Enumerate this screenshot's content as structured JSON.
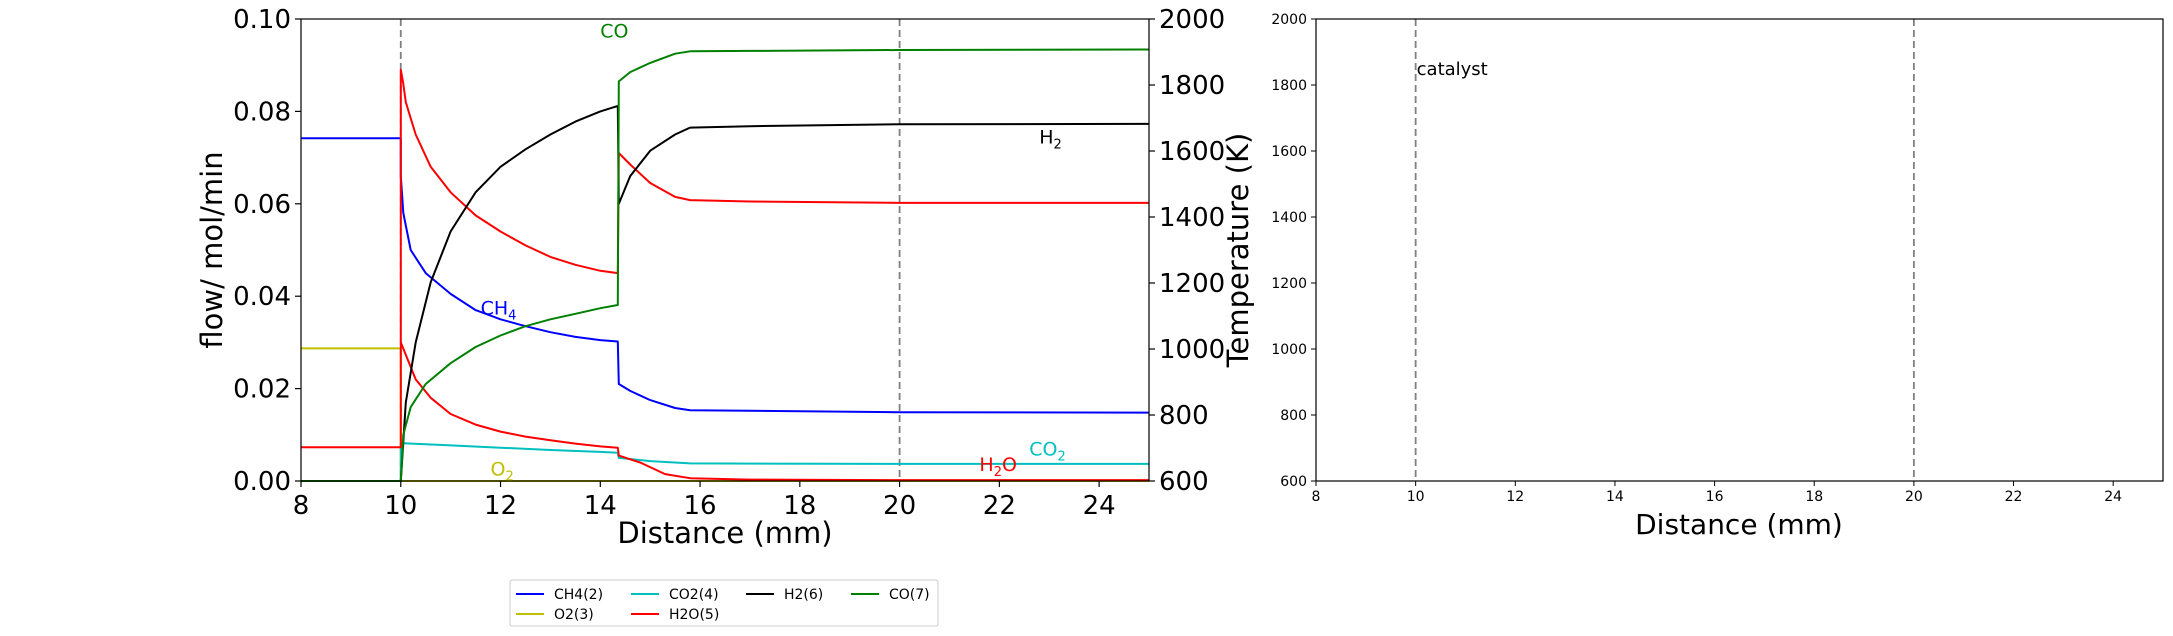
{
  "chart_data": [
    {
      "type": "line",
      "xlabel": "Distance (mm)",
      "ylabel": "flow/ mol/min",
      "y2label": "Temperature (K)",
      "xlim": [
        8,
        25
      ],
      "ylim": [
        0,
        0.1
      ],
      "y2lim": [
        600,
        2000
      ],
      "xticks": [
        "8",
        "10",
        "12",
        "14",
        "16",
        "18",
        "20",
        "22",
        "24"
      ],
      "yticks": [
        "0.00",
        "0.02",
        "0.04",
        "0.06",
        "0.08",
        "0.10"
      ],
      "y2ticks": [
        "600",
        "800",
        "1000",
        "1200",
        "1400",
        "1600",
        "1800",
        "2000"
      ],
      "vlines": [
        10,
        20
      ],
      "grid": false,
      "series": [
        {
          "name": "CH4(2)",
          "color": "#0000ff",
          "points": [
            [
              8,
              0.0742
            ],
            [
              10,
              0.0742
            ],
            [
              10,
              0.066
            ],
            [
              10.05,
              0.058
            ],
            [
              10.2,
              0.05
            ],
            [
              10.5,
              0.045
            ],
            [
              11,
              0.0405
            ],
            [
              11.5,
              0.037
            ],
            [
              12,
              0.035
            ],
            [
              12.5,
              0.0335
            ],
            [
              13,
              0.0322
            ],
            [
              13.5,
              0.0312
            ],
            [
              14,
              0.0305
            ],
            [
              14.35,
              0.0302
            ],
            [
              14.37,
              0.021
            ],
            [
              14.6,
              0.0195
            ],
            [
              15,
              0.0175
            ],
            [
              15.5,
              0.0158
            ],
            [
              15.8,
              0.0153
            ],
            [
              17,
              0.0152
            ],
            [
              20,
              0.0149
            ],
            [
              25,
              0.0148
            ]
          ]
        },
        {
          "name": "O2(3)",
          "color": "#bfbf00",
          "points": [
            [
              8,
              0.0287
            ],
            [
              10,
              0.0287
            ],
            [
              10,
              0.0
            ],
            [
              25,
              0.0
            ]
          ]
        },
        {
          "name": "CO2(4)",
          "color": "#00bfbf",
          "points": [
            [
              8,
              0.0
            ],
            [
              10,
              0.0
            ],
            [
              10,
              0.0082
            ],
            [
              11,
              0.0077
            ],
            [
              12,
              0.0072
            ],
            [
              13,
              0.0067
            ],
            [
              14,
              0.0063
            ],
            [
              14.35,
              0.0061
            ],
            [
              14.37,
              0.005
            ],
            [
              15,
              0.0043
            ],
            [
              15.8,
              0.0038
            ],
            [
              20,
              0.0037
            ],
            [
              25,
              0.0037
            ]
          ]
        },
        {
          "name": "H2O(5)",
          "color": "#ff0000",
          "points": [
            [
              8,
              0.0073
            ],
            [
              10,
              0.0073
            ],
            [
              10,
              0.089
            ],
            [
              10.05,
              0.086
            ],
            [
              10.1,
              0.082
            ],
            [
              10.3,
              0.075
            ],
            [
              10.6,
              0.068
            ],
            [
              11,
              0.0625
            ],
            [
              11.5,
              0.0575
            ],
            [
              12,
              0.054
            ],
            [
              12.5,
              0.051
            ],
            [
              13,
              0.0485
            ],
            [
              13.5,
              0.0468
            ],
            [
              14,
              0.0455
            ],
            [
              14.35,
              0.045
            ],
            [
              14.37,
              0.071
            ],
            [
              14.6,
              0.0685
            ],
            [
              15,
              0.0645
            ],
            [
              15.5,
              0.0615
            ],
            [
              15.8,
              0.0608
            ],
            [
              17,
              0.0605
            ],
            [
              20,
              0.0602
            ],
            [
              25,
              0.0602
            ]
          ]
        },
        {
          "name": "H2O(5)b",
          "color": "#ff0000",
          "points": [
            [
              10,
              0.03
            ],
            [
              10.3,
              0.022
            ],
            [
              10.6,
              0.018
            ],
            [
              11,
              0.0145
            ],
            [
              11.5,
              0.0122
            ],
            [
              12,
              0.0107
            ],
            [
              12.5,
              0.0096
            ],
            [
              13,
              0.0088
            ],
            [
              13.5,
              0.0081
            ],
            [
              14,
              0.0075
            ],
            [
              14.35,
              0.0072
            ],
            [
              14.37,
              0.0055
            ],
            [
              14.8,
              0.004
            ],
            [
              15.3,
              0.0015
            ],
            [
              15.8,
              0.0006
            ],
            [
              17,
              0.0003
            ],
            [
              20,
              0.0002
            ],
            [
              25,
              0.0002
            ]
          ]
        },
        {
          "name": "H2(6)",
          "color": "#000000",
          "points": [
            [
              8,
              0.0
            ],
            [
              10,
              0.0
            ],
            [
              10.1,
              0.017
            ],
            [
              10.3,
              0.03
            ],
            [
              10.6,
              0.043
            ],
            [
              11,
              0.054
            ],
            [
              11.5,
              0.0625
            ],
            [
              12,
              0.068
            ],
            [
              12.5,
              0.0718
            ],
            [
              13,
              0.075
            ],
            [
              13.5,
              0.0778
            ],
            [
              14,
              0.08
            ],
            [
              14.35,
              0.0812
            ],
            [
              14.37,
              0.06
            ],
            [
              14.6,
              0.066
            ],
            [
              15,
              0.0715
            ],
            [
              15.5,
              0.075
            ],
            [
              15.8,
              0.0765
            ],
            [
              17,
              0.0768
            ],
            [
              20,
              0.0772
            ],
            [
              25,
              0.0773
            ]
          ]
        },
        {
          "name": "CO(7)",
          "color": "#008000",
          "points": [
            [
              8,
              0.0
            ],
            [
              10,
              0.0
            ],
            [
              10.05,
              0.01
            ],
            [
              10.2,
              0.016
            ],
            [
              10.5,
              0.021
            ],
            [
              11,
              0.0255
            ],
            [
              11.5,
              0.029
            ],
            [
              12,
              0.0315
            ],
            [
              12.5,
              0.0335
            ],
            [
              13,
              0.035
            ],
            [
              13.5,
              0.0362
            ],
            [
              14,
              0.0374
            ],
            [
              14.35,
              0.0381
            ],
            [
              14.37,
              0.0865
            ],
            [
              14.6,
              0.0885
            ],
            [
              15,
              0.0905
            ],
            [
              15.5,
              0.0925
            ],
            [
              15.8,
              0.093
            ],
            [
              17,
              0.0931
            ],
            [
              20,
              0.0933
            ],
            [
              25,
              0.0934
            ]
          ]
        }
      ],
      "annotations": [
        {
          "base": "CO",
          "sub": "",
          "suffix": "",
          "color": "#008000",
          "x": 14.0,
          "y": 0.096
        },
        {
          "base": "H",
          "sub": "2",
          "suffix": "",
          "color": "#000000",
          "x": 22.8,
          "y": 0.073
        },
        {
          "base": "CH",
          "sub": "4",
          "suffix": "",
          "color": "#0000ff",
          "x": 11.6,
          "y": 0.036
        },
        {
          "base": "CO",
          "sub": "2",
          "suffix": "",
          "color": "#00bfbf",
          "x": 22.6,
          "y": 0.0055
        },
        {
          "base": "H",
          "sub": "2",
          "suffix": "O",
          "color": "#ff0000",
          "x": 21.6,
          "y": 0.0022
        },
        {
          "base": "O",
          "sub": "2",
          "suffix": "",
          "color": "#bfbf00",
          "x": 11.8,
          "y": 0.0012
        }
      ],
      "legend": {
        "placement": "bottom",
        "entries": [
          {
            "label": "CH4(2)",
            "color": "#0000ff"
          },
          {
            "label": "CO2(4)",
            "color": "#00bfbf"
          },
          {
            "label": "H2(6)",
            "color": "#000000"
          },
          {
            "label": "CO(7)",
            "color": "#008000"
          },
          {
            "label": "O2(3)",
            "color": "#bfbf00"
          },
          {
            "label": "H2O(5)",
            "color": "#ff0000"
          }
        ]
      }
    },
    {
      "type": "line",
      "xlabel": "Distance (mm)",
      "xlim": [
        8,
        25
      ],
      "ylim": [
        600,
        2000
      ],
      "xticks": [
        "8",
        "10",
        "12",
        "14",
        "16",
        "18",
        "20",
        "22",
        "24"
      ],
      "yticks": [
        "600",
        "800",
        "1000",
        "1200",
        "1400",
        "1600",
        "1800",
        "2000"
      ],
      "vlines": [
        10,
        20
      ],
      "grid": false,
      "annotations": [
        {
          "text": "catalyst",
          "x": 10.0,
          "y": 1830
        }
      ],
      "series": []
    }
  ]
}
